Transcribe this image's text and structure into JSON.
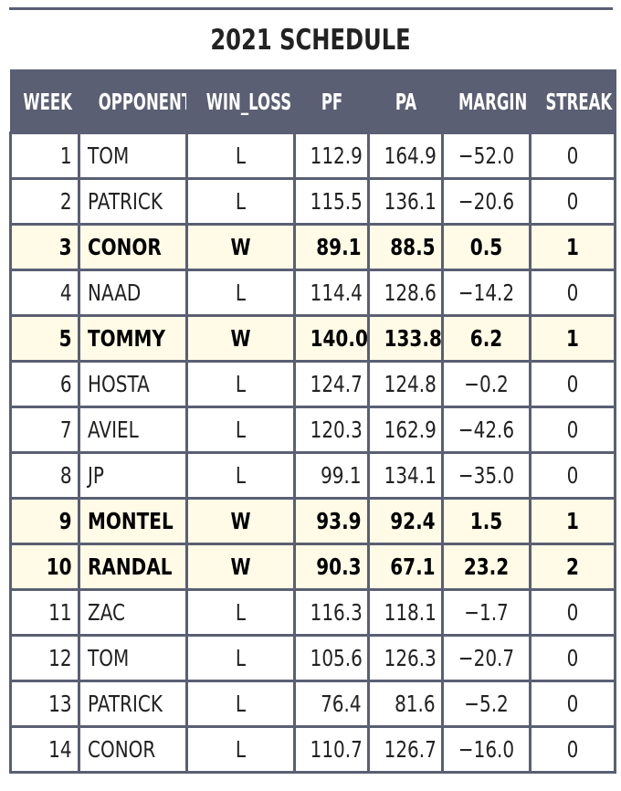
{
  "title": "2021 SCHEDULE",
  "colors": {
    "header_bg": "#5a5f73",
    "header_text": "#ffffff",
    "win_row_bg": "#fffbe6",
    "border": "#5a5f73"
  },
  "chart_data": {
    "type": "table",
    "title": "2021 SCHEDULE",
    "columns": [
      "WEEK",
      "OPPONENT",
      "WIN_LOSS",
      "PF",
      "PA",
      "MARGIN",
      "STREAK"
    ],
    "rows": [
      {
        "week": "1",
        "opponent": "TOM",
        "win_loss": "L",
        "pf": "112.9",
        "pa": "164.9",
        "margin": "−52.0",
        "streak": "0"
      },
      {
        "week": "2",
        "opponent": "PATRICK",
        "win_loss": "L",
        "pf": "115.5",
        "pa": "136.1",
        "margin": "−20.6",
        "streak": "0"
      },
      {
        "week": "3",
        "opponent": "CONOR",
        "win_loss": "W",
        "pf": "89.1",
        "pa": "88.5",
        "margin": "0.5",
        "streak": "1"
      },
      {
        "week": "4",
        "opponent": "NAAD",
        "win_loss": "L",
        "pf": "114.4",
        "pa": "128.6",
        "margin": "−14.2",
        "streak": "0"
      },
      {
        "week": "5",
        "opponent": "TOMMY",
        "win_loss": "W",
        "pf": "140.0",
        "pa": "133.8",
        "margin": "6.2",
        "streak": "1"
      },
      {
        "week": "6",
        "opponent": "HOSTA",
        "win_loss": "L",
        "pf": "124.7",
        "pa": "124.8",
        "margin": "−0.2",
        "streak": "0"
      },
      {
        "week": "7",
        "opponent": "AVIEL",
        "win_loss": "L",
        "pf": "120.3",
        "pa": "162.9",
        "margin": "−42.6",
        "streak": "0"
      },
      {
        "week": "8",
        "opponent": "JP",
        "win_loss": "L",
        "pf": "99.1",
        "pa": "134.1",
        "margin": "−35.0",
        "streak": "0"
      },
      {
        "week": "9",
        "opponent": "MONTEL",
        "win_loss": "W",
        "pf": "93.9",
        "pa": "92.4",
        "margin": "1.5",
        "streak": "1"
      },
      {
        "week": "10",
        "opponent": "RANDAL",
        "win_loss": "W",
        "pf": "90.3",
        "pa": "67.1",
        "margin": "23.2",
        "streak": "2"
      },
      {
        "week": "11",
        "opponent": "ZAC",
        "win_loss": "L",
        "pf": "116.3",
        "pa": "118.1",
        "margin": "−1.7",
        "streak": "0"
      },
      {
        "week": "12",
        "opponent": "TOM",
        "win_loss": "L",
        "pf": "105.6",
        "pa": "126.3",
        "margin": "−20.7",
        "streak": "0"
      },
      {
        "week": "13",
        "opponent": "PATRICK",
        "win_loss": "L",
        "pf": "76.4",
        "pa": "81.6",
        "margin": "−5.2",
        "streak": "0"
      },
      {
        "week": "14",
        "opponent": "CONOR",
        "win_loss": "L",
        "pf": "110.7",
        "pa": "126.7",
        "margin": "−16.0",
        "streak": "0"
      }
    ]
  }
}
